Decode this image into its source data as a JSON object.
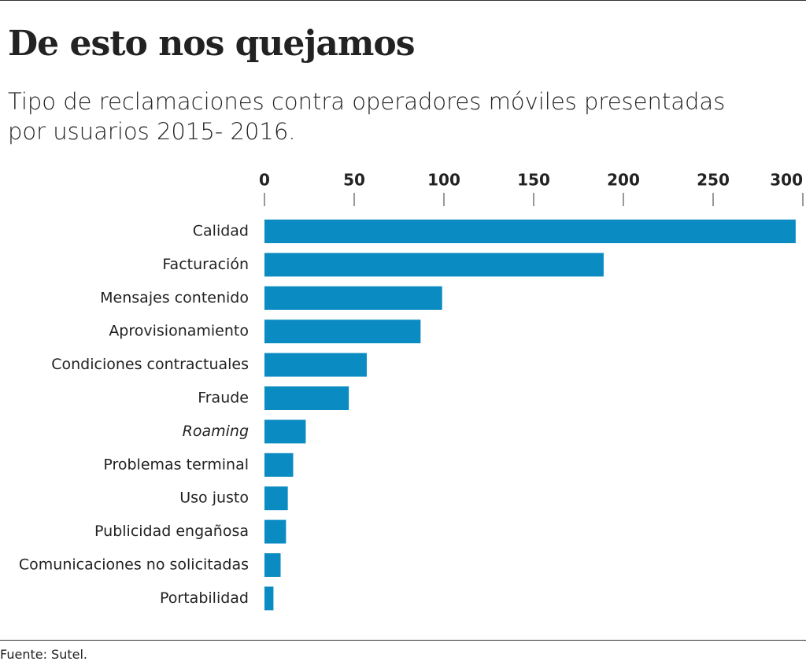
{
  "chart_data": {
    "type": "bar",
    "orientation": "horizontal",
    "title": "De esto nos quejamos",
    "subtitle": "Tipo de reclamaciones contra operadores móviles presentadas por usuarios  2015- 2016.",
    "source": "Fuente: Sutel.",
    "categories": [
      "Calidad",
      "Facturación",
      "Mensajes contenido",
      "Aprovisionamiento",
      "Condiciones contractuales",
      "Fraude",
      "Roaming",
      "Problemas terminal",
      "Uso justo",
      "Publicidad engañosa",
      "Comunicaciones no solicitadas",
      "Portabilidad"
    ],
    "values": [
      296,
      189,
      99,
      87,
      57,
      47,
      23,
      16,
      13,
      12,
      9,
      5
    ],
    "color": "#0a8cc2",
    "xlim": [
      0,
      300
    ],
    "xticks": [
      0,
      50,
      100,
      150,
      200,
      250,
      300
    ]
  }
}
